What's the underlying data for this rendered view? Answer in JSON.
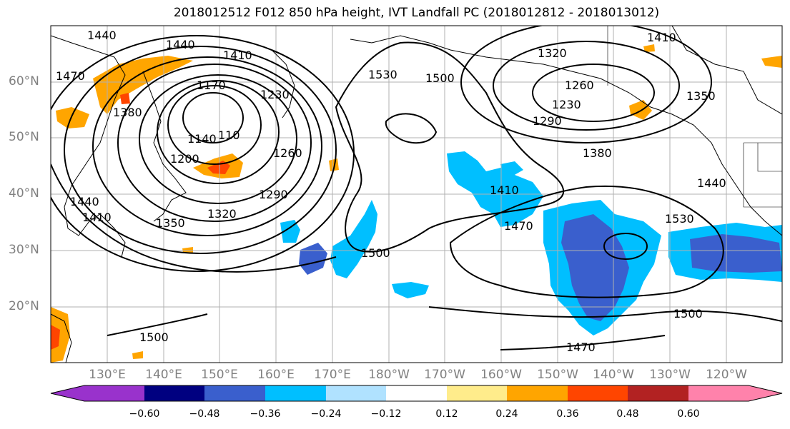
{
  "title": "2018012512 F012 850 hPa height, IVT Landfall PC (2018012812 - 2018013012)",
  "lat_labels": [
    "60°N",
    "50°N",
    "40°N",
    "30°N",
    "20°N"
  ],
  "lon_labels": [
    "130°E",
    "140°E",
    "150°E",
    "160°E",
    "170°E",
    "180°W",
    "170°W",
    "160°W",
    "150°W",
    "140°W",
    "130°W",
    "120°W"
  ],
  "contour_labels": [
    "1440",
    "1440",
    "1410",
    "1380",
    "1470",
    "1170",
    "1140",
    "110",
    "1200",
    "1230",
    "1260",
    "1290",
    "1320",
    "1350",
    "1410",
    "1440",
    "1530",
    "1500",
    "1500",
    "1410",
    "1470",
    "1320",
    "1260",
    "1230",
    "1290",
    "1380",
    "1410",
    "1350",
    "1440",
    "1530",
    "1500",
    "1470",
    "1500"
  ],
  "colorbar": {
    "ticks": [
      "−0.60",
      "−0.48",
      "−0.36",
      "−0.24",
      "−0.12",
      "0.12",
      "0.24",
      "0.36",
      "0.48",
      "0.60"
    ],
    "colors": [
      "#9932cc",
      "#000080",
      "#3a5fcd",
      "#00bfff",
      "#b0e2ff",
      "#ffffff",
      "#ffec8b",
      "#ffa500",
      "#ff4500",
      "#b22222",
      "#ff82ab"
    ]
  },
  "colors": {
    "positive_blue": "#00bfff",
    "mid_blue": "#3a5fcd",
    "orange": "#ffa500",
    "red": "#ff4500"
  }
}
